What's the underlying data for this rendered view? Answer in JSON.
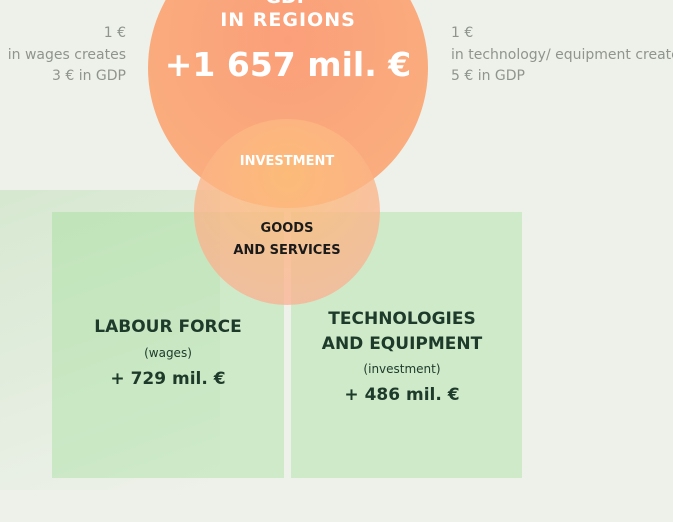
{
  "gdp_circle": {
    "heading": "GDP",
    "subheading": "IN REGIONS",
    "value": "+1 657 mil. €"
  },
  "left_note": {
    "lines": [
      "1 €",
      "in wages creates",
      "3 € in GDP"
    ]
  },
  "right_note": {
    "lines": [
      "1 €",
      "in technology/ equipment creates",
      "5 € in GDP"
    ]
  },
  "investment_label": "INVESTMENT",
  "goods_circle": {
    "lines": [
      "GOODS",
      "AND SERVICES"
    ]
  },
  "labour_box": {
    "title": "LABOUR FORCE",
    "subtitle": "(wages)",
    "value": "+ 729 mil. €"
  },
  "tech_box": {
    "title_lines": [
      "TECHNOLOGIES",
      "AND EQUIPMENT"
    ],
    "subtitle": "(investment)",
    "value": "+ 486 mil. €"
  }
}
